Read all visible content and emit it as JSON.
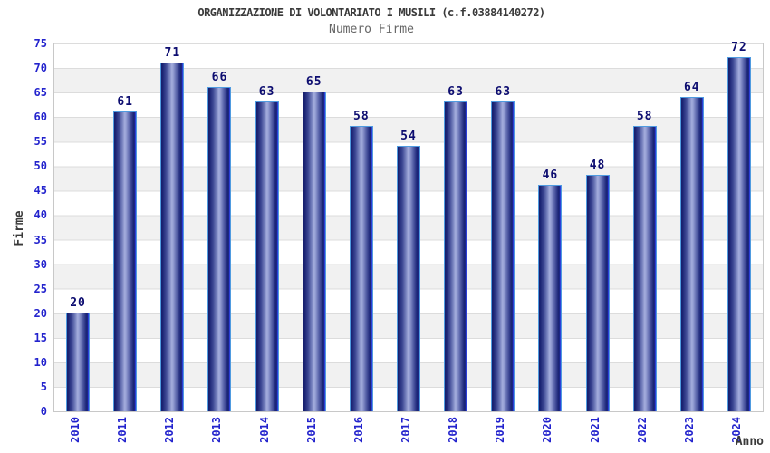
{
  "chart_data": {
    "type": "bar",
    "title": "ORGANIZZAZIONE DI VOLONTARIATO I MUSILI (c.f.03884140272)",
    "subtitle": "Numero Firme",
    "xlabel": "Anno",
    "ylabel": "Firme",
    "categories": [
      "2010",
      "2011",
      "2012",
      "2013",
      "2014",
      "2015",
      "2016",
      "2017",
      "2018",
      "2019",
      "2020",
      "2021",
      "2022",
      "2023",
      "2024"
    ],
    "values": [
      20,
      61,
      71,
      66,
      63,
      65,
      58,
      54,
      63,
      63,
      46,
      48,
      58,
      64,
      72
    ],
    "ylim": [
      0,
      75
    ],
    "ytick_step": 5,
    "grid": "horizontal-bands-every-5",
    "legend_position": "none",
    "colors": {
      "tick_label": "#2323cd",
      "value_label": "#0d0d70",
      "title": "#3a3a3a",
      "subtitle": "#666666",
      "axis_label": "#3a3a3a",
      "bar_gradient_dark": "#161f6b",
      "bar_gradient_light": "#a3acdc",
      "bar_border": "#4f9be0",
      "band_gray": "#f1f1f1",
      "grid_line": "#dcdcdc",
      "plot_border": "#c8c8c8",
      "background": "#ffffff"
    }
  }
}
